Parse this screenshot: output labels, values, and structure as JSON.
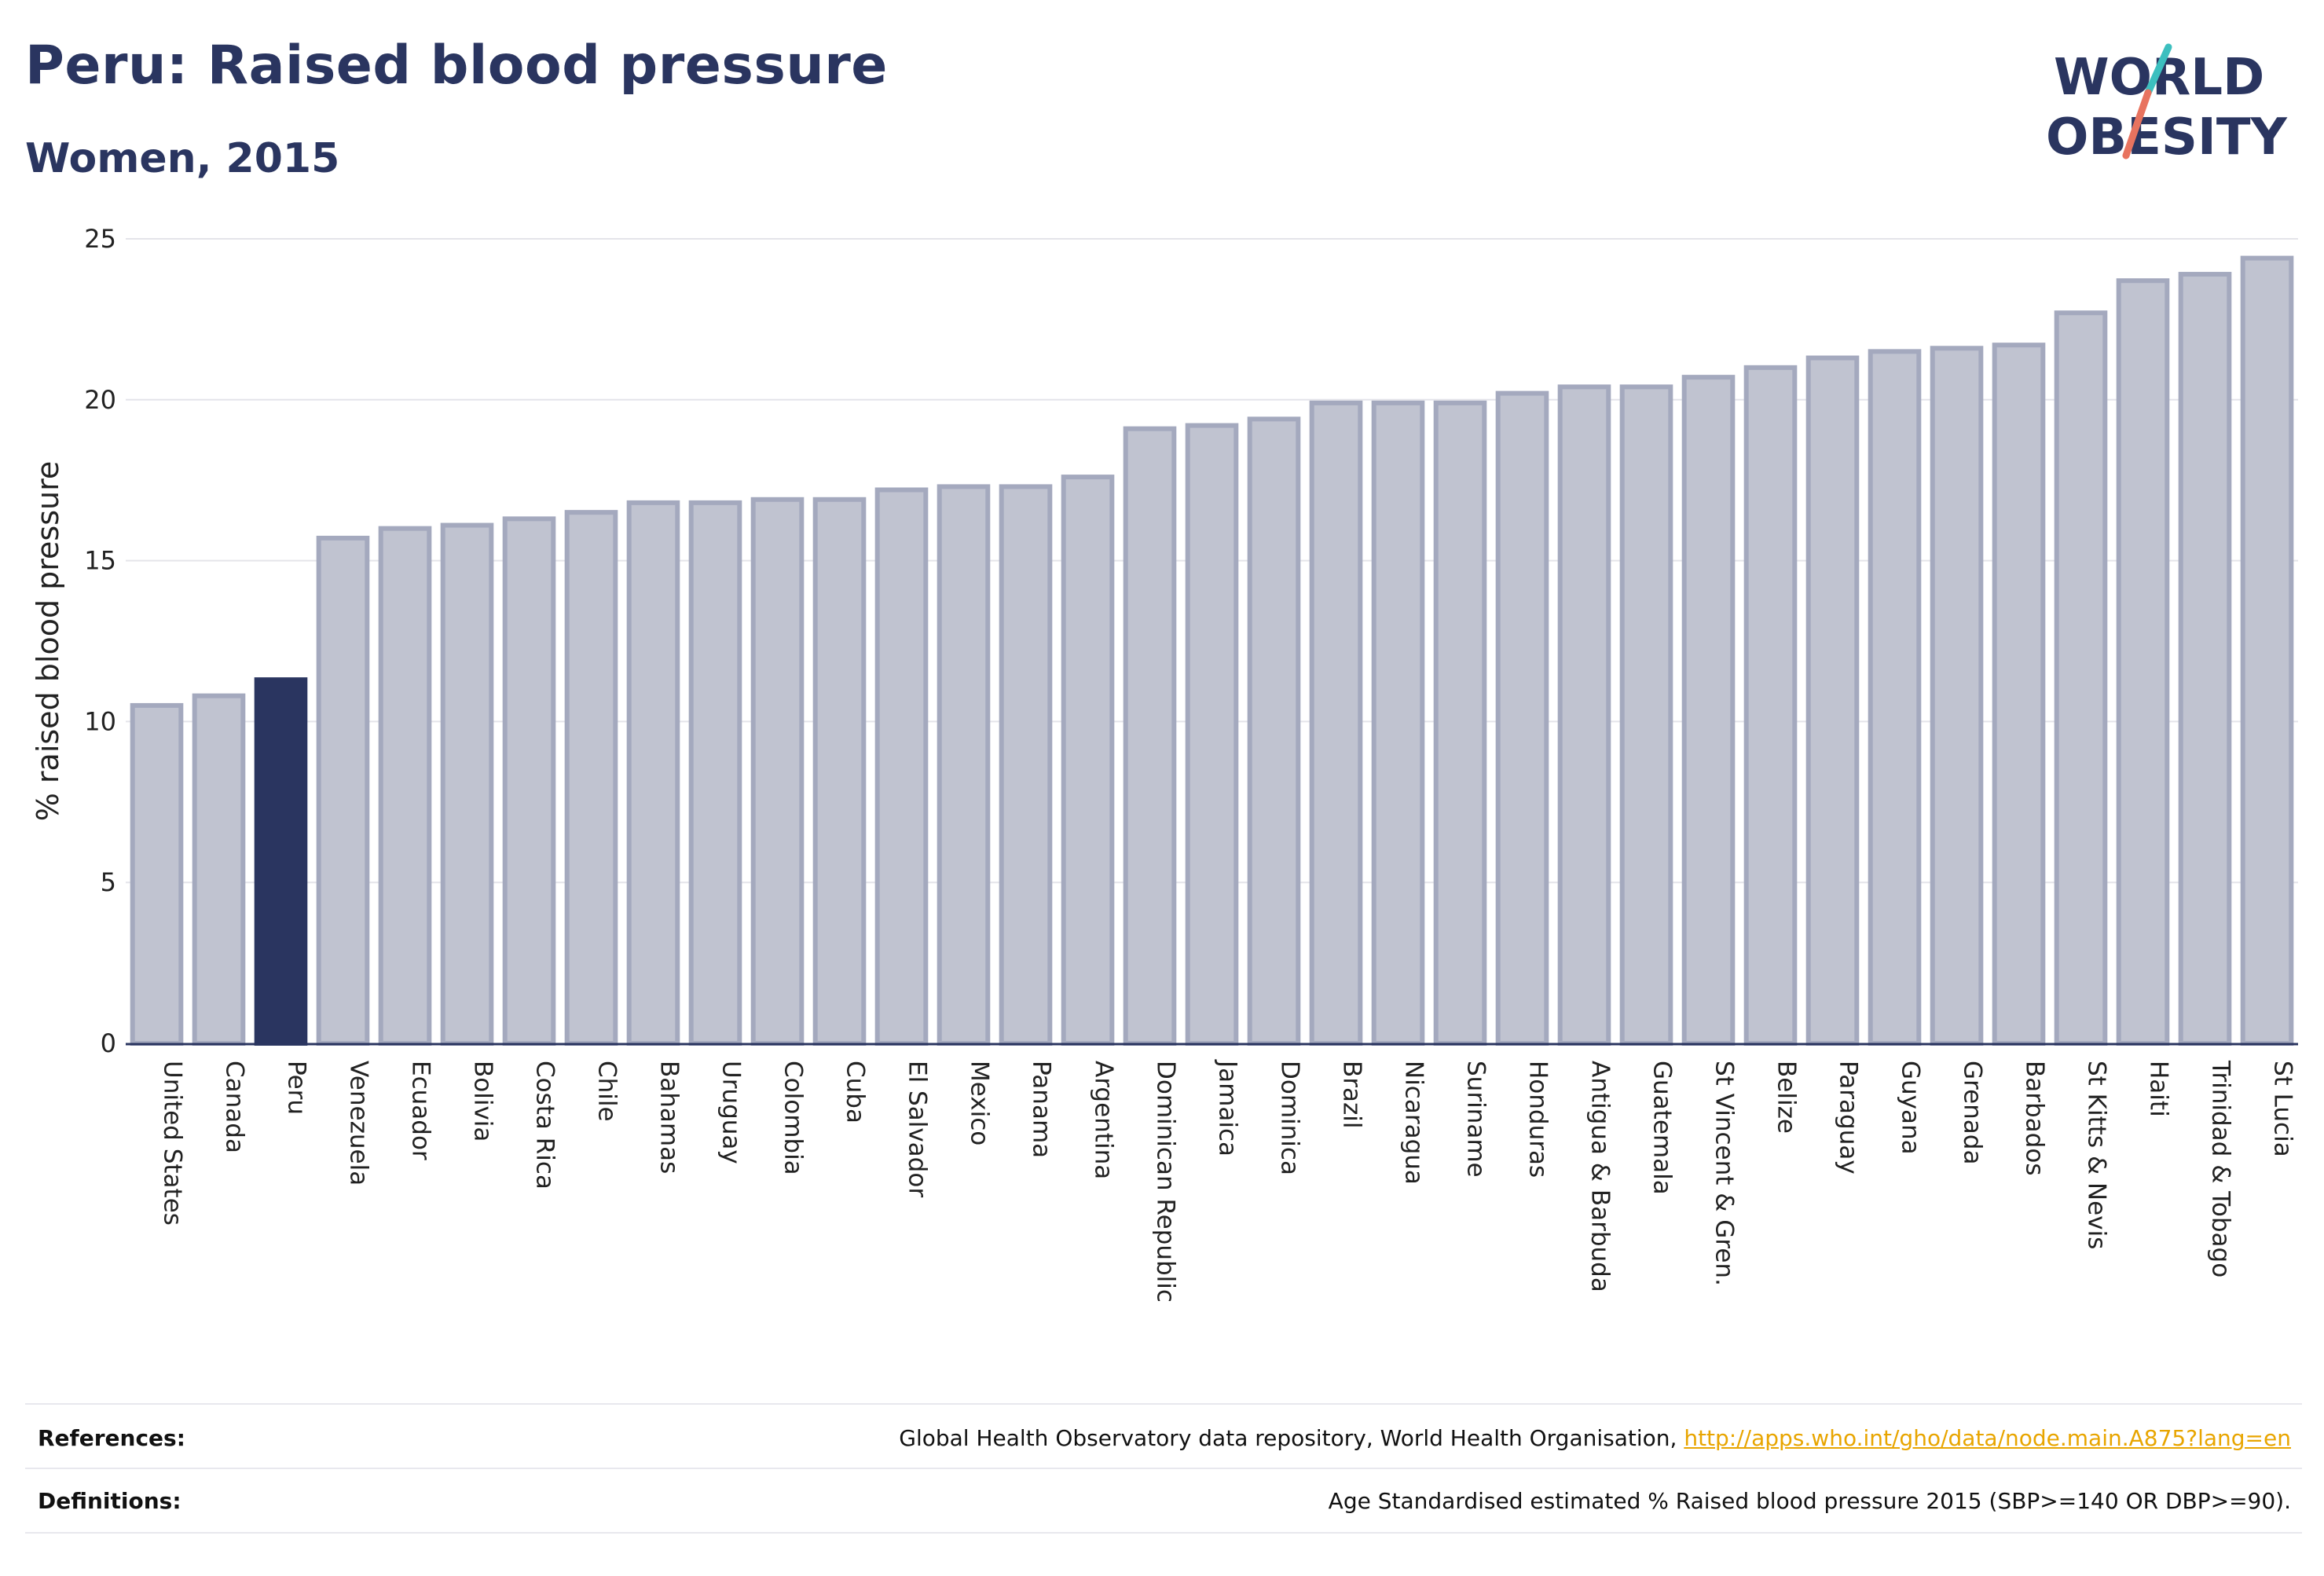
{
  "header": {
    "title": "Peru: Raised blood pressure",
    "subtitle": "Women, 2015"
  },
  "logo": {
    "line1": "WORLD",
    "line2": "OBESITY",
    "text_color": "#2a3560",
    "slash_colors": [
      "#e8735f",
      "#3cbfbf"
    ]
  },
  "colors": {
    "highlight": "#2a3560",
    "bar_fill": "#c0c3d0",
    "bar_stroke": "#a4a9be",
    "grid": "#e4e4ea"
  },
  "chart_data": {
    "type": "bar",
    "title": "Peru: Raised blood pressure",
    "subtitle": "Women, 2015",
    "xlabel": "",
    "ylabel": "% raised blood pressure",
    "ylim": [
      0,
      25
    ],
    "yticks": [
      0,
      5,
      10,
      15,
      20,
      25
    ],
    "grid": true,
    "highlight_category": "Peru",
    "categories": [
      "United States",
      "Canada",
      "Peru",
      "Venezuela",
      "Ecuador",
      "Bolivia",
      "Costa Rica",
      "Chile",
      "Bahamas",
      "Uruguay",
      "Colombia",
      "Cuba",
      "El Salvador",
      "Mexico",
      "Panama",
      "Argentina",
      "Dominican Republic",
      "Jamaica",
      "Dominica",
      "Brazil",
      "Nicaragua",
      "Suriname",
      "Honduras",
      "Antigua & Barbuda",
      "Guatemala",
      "St Vincent & Gren.",
      "Belize",
      "Paraguay",
      "Guyana",
      "Grenada",
      "Barbados",
      "St Kitts & Nevis",
      "Haiti",
      "Trinidad & Tobago",
      "St Lucia"
    ],
    "values": [
      10.5,
      10.8,
      11.3,
      15.7,
      16.0,
      16.1,
      16.3,
      16.5,
      16.8,
      16.8,
      16.9,
      16.9,
      17.2,
      17.3,
      17.3,
      17.6,
      19.1,
      19.2,
      19.4,
      19.9,
      19.9,
      19.9,
      20.2,
      20.4,
      20.4,
      20.7,
      21.0,
      21.3,
      21.5,
      21.6,
      21.7,
      22.7,
      23.7,
      23.9,
      24.4
    ]
  },
  "footer": {
    "references_label": "References:",
    "references_text": "Global Health Observatory data repository, World Health Organisation, ",
    "references_link": "http://apps.who.int/gho/data/node.main.A875?lang=en",
    "definitions_label": "Definitions:",
    "definitions_text": "Age Standardised estimated % Raised blood pressure 2015 (SBP>=140 OR DBP>=90)."
  }
}
